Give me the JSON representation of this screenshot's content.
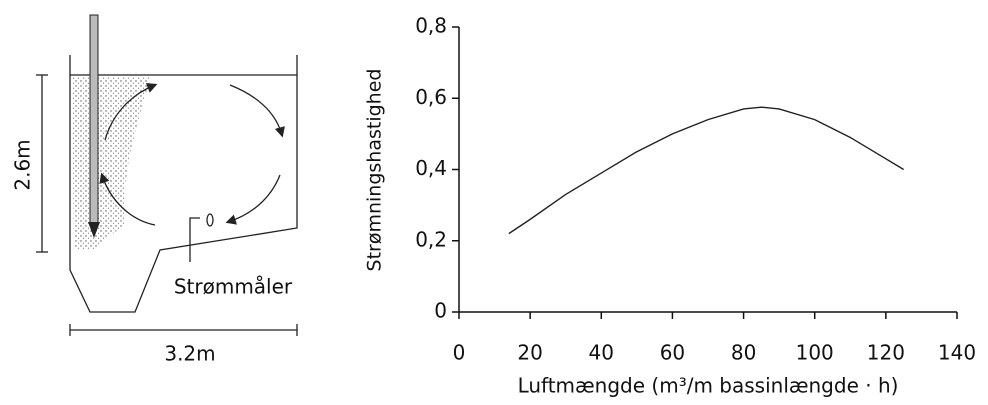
{
  "diagram": {
    "height_label": "2.6m",
    "width_label": "3.2m",
    "meter_label": "Strømmåler"
  },
  "chart_data": {
    "type": "line",
    "ylabel": "Strømningshastighed",
    "xlabel": "Luftmængde (m³/m bassinlængde · h)",
    "x": [
      14,
      20,
      30,
      40,
      50,
      60,
      70,
      80,
      85,
      90,
      100,
      110,
      120,
      125
    ],
    "values": [
      0.22,
      0.26,
      0.33,
      0.39,
      0.45,
      0.5,
      0.54,
      0.57,
      0.575,
      0.57,
      0.54,
      0.49,
      0.43,
      0.4
    ],
    "color": "#222222",
    "xlim": [
      0,
      140
    ],
    "xticks": [
      0,
      20,
      40,
      60,
      80,
      100,
      120,
      140
    ],
    "ylim": [
      0,
      0.8
    ],
    "yticks": [
      0,
      {
        "value": 0.2,
        "label": "0,2"
      },
      {
        "value": 0.4,
        "label": "0,4"
      },
      {
        "value": 0.6,
        "label": "0,6"
      },
      {
        "value": 0.8,
        "label": "0,8"
      }
    ]
  }
}
